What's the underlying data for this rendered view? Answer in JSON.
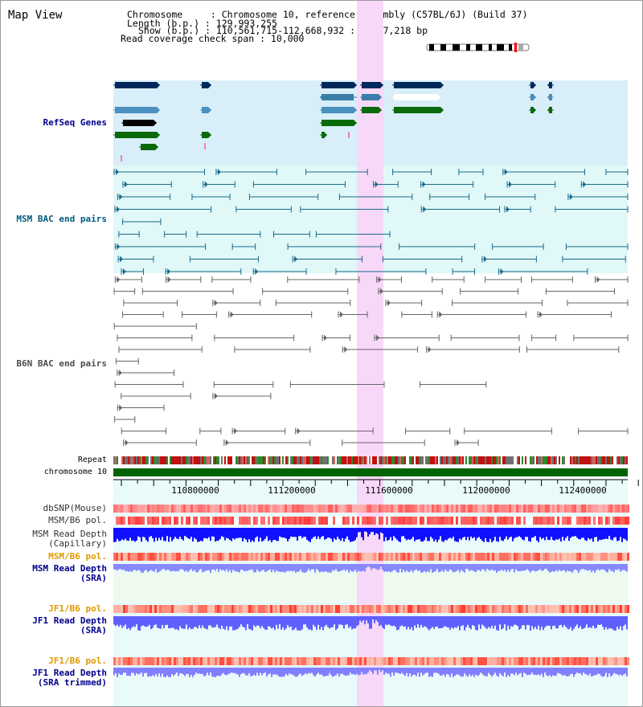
{
  "page": {
    "title": "Map View"
  },
  "info": {
    "chromosome": "Chromosome     : Chromosome 10, reference assembly (C57BL/6J) (Build 37)",
    "length": "Length (b.p.) : 129,993,255",
    "show": "Show (b.p.) : 110,561,715-112,668,932 : 2,107,218 bp",
    "span": "Read coverage check span : 10,000"
  },
  "tracks": {
    "refseq": "RefSeq Genes",
    "msm_bac": "MSM BAC end pairs",
    "b6n_bac": "B6N BAC end pairs",
    "repeat": "Repeat",
    "chromosome": "chromosome 10",
    "dbsnp": "dbSNP(Mouse)",
    "msm_pol1": "MSM/B6 pol.",
    "msm_depth_cap_1": "MSM Read Depth",
    "msm_depth_cap_2": "(Capillary)",
    "msm_pol2": "MSM/B6 pol.",
    "msm_depth_sra_1": "MSM Read Depth",
    "msm_depth_sra_2": "(SRA)",
    "jf1_pol1": "JF1/B6 pol.",
    "jf1_depth_sra_1": "JF1 Read Depth",
    "jf1_depth_sra_2": "(SRA)",
    "jf1_pol2": "JF1/B6 pol.",
    "jf1_depth_trim_1": "JF1 Read Depth",
    "jf1_depth_trim_2": "(SRA trimmed)"
  },
  "axis": {
    "ticks": [
      "110800000",
      "111200000",
      "111600000",
      "112000000",
      "112400000"
    ]
  },
  "colors": {
    "refseq_bg": "#d8eef8",
    "msm_bg": "#e0f8f8",
    "highlight": "#f8d8f8",
    "label_blue": "#00008b",
    "label_teal": "#005a80",
    "label_gray": "#4d4d4d",
    "label_orange": "#e09800",
    "chromosome_green": "#006400"
  }
}
